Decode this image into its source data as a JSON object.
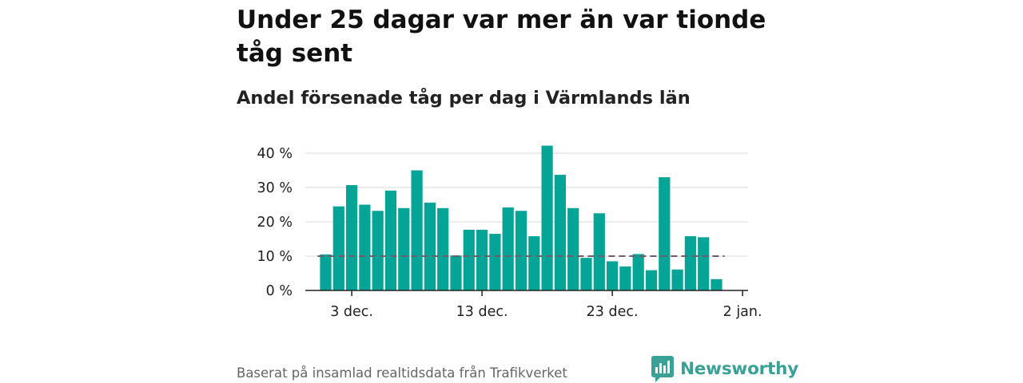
{
  "title": "Under 25 dagar var mer än var tionde tåg sent",
  "subtitle": "Andel försenade tåg per dag i Värmlands län",
  "footer": {
    "source": "Baserat på insamlad realtidsdata från Trafikverket",
    "brand": "Newsworthy"
  },
  "colors": {
    "bar": "#04a597",
    "reference_line": "#6e5e6c",
    "gridline": "#d9d9d9",
    "axis": "#222222",
    "brand": "#3aa197"
  },
  "chart_data": {
    "type": "bar",
    "title": "Under 25 dagar var mer än var tionde tåg sent",
    "subtitle": "Andel försenade tåg per dag i Värmlands län",
    "xlabel": "",
    "ylabel": "",
    "x_ticks": [
      "3 dec.",
      "13 dec.",
      "23 dec.",
      "2 jan."
    ],
    "y_ticks": [
      "0 %",
      "10 %",
      "20 %",
      "30 %",
      "40 %"
    ],
    "ylim": [
      0,
      40
    ],
    "grid": true,
    "legend": "none",
    "reference_line": 10,
    "categories": [
      "2023-12-01",
      "2023-12-02",
      "2023-12-03",
      "2023-12-04",
      "2023-12-05",
      "2023-12-06",
      "2023-12-07",
      "2023-12-08",
      "2023-12-09",
      "2023-12-10",
      "2023-12-11",
      "2023-12-12",
      "2023-12-13",
      "2023-12-14",
      "2023-12-15",
      "2023-12-16",
      "2023-12-17",
      "2023-12-18",
      "2023-12-19",
      "2023-12-20",
      "2023-12-21",
      "2023-12-22",
      "2023-12-23",
      "2023-12-24",
      "2023-12-25",
      "2023-12-26",
      "2023-12-27",
      "2023-12-28",
      "2023-12-29",
      "2023-12-30",
      "2023-12-31"
    ],
    "values": [
      10.5,
      24.5,
      30.7,
      25.0,
      23.2,
      29.1,
      24.0,
      35.0,
      25.6,
      24.0,
      10.2,
      17.7,
      17.7,
      16.5,
      24.2,
      23.2,
      15.8,
      42.2,
      33.7,
      24.0,
      9.5,
      22.5,
      8.5,
      7.0,
      10.6,
      5.9,
      33.0,
      6.1,
      15.8,
      15.5,
      3.3
    ]
  }
}
